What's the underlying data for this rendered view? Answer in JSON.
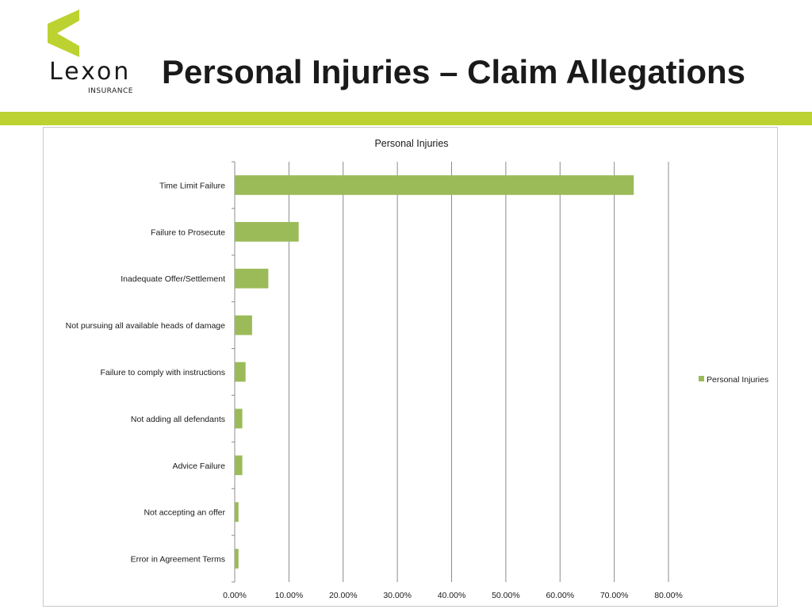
{
  "brand": {
    "logo_word": "Lexon",
    "logo_sub": "INSURANCE",
    "accent_color": "#bcd231"
  },
  "slide": {
    "title": "Personal Injuries – Claim Allegations"
  },
  "chart_data": {
    "type": "bar",
    "orientation": "horizontal",
    "title": "Personal Injuries",
    "categories": [
      "Time Limit Failure",
      "Failure to Prosecute",
      "Inadequate Offer/Settlement",
      "Not pursuing all available heads of damage",
      "Failure to comply with instructions",
      "Not adding all defendants",
      "Advice Failure",
      "Not accepting an offer",
      "Error in Agreement Terms"
    ],
    "series": [
      {
        "name": "Personal Injuries",
        "color": "#9bbb59",
        "values": [
          73.6,
          11.8,
          6.2,
          3.2,
          2.0,
          1.4,
          1.4,
          0.7,
          0.7
        ]
      }
    ],
    "xlim": [
      0,
      80
    ],
    "x_ticks": [
      "0.00%",
      "10.00%",
      "20.00%",
      "30.00%",
      "40.00%",
      "50.00%",
      "60.00%",
      "70.00%",
      "80.00%"
    ],
    "grid": true,
    "legend": "right"
  }
}
